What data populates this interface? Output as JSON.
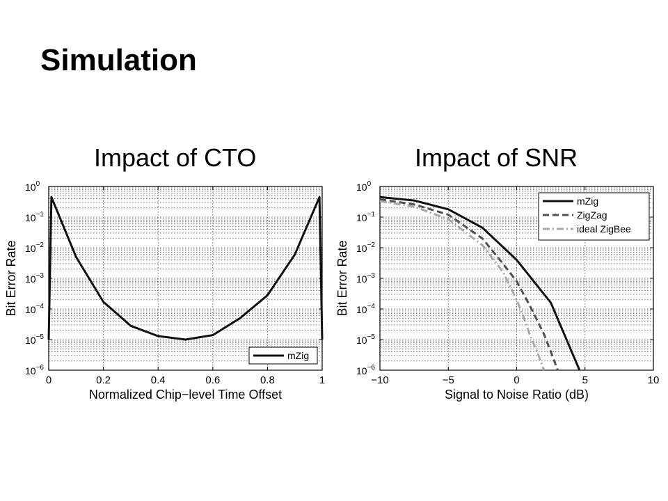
{
  "slide": {
    "title": "Simulation"
  },
  "chart_data": [
    {
      "type": "line",
      "title": "Impact of CTO",
      "xlabel": "Normalized Chip−level Time Offset",
      "ylabel": "Bit Error Rate",
      "xlim": [
        0,
        1
      ],
      "ylim": [
        1e-06,
        1
      ],
      "yscale": "log",
      "grid": true,
      "legend_position": "bottom-right",
      "xticks": [
        0,
        0.2,
        0.4,
        0.6,
        0.8,
        1
      ],
      "xtick_labels": [
        "0",
        "0.2",
        "0.4",
        "0.6",
        "0.8",
        "1"
      ],
      "yticks": [
        1e-06,
        1e-05,
        0.0001,
        0.001,
        0.01,
        0.1,
        1
      ],
      "ytick_labels": [
        {
          "base": "10",
          "exp": "−6"
        },
        {
          "base": "10",
          "exp": "−5"
        },
        {
          "base": "10",
          "exp": "−4"
        },
        {
          "base": "10",
          "exp": "−3"
        },
        {
          "base": "10",
          "exp": "−2"
        },
        {
          "base": "10",
          "exp": "−1"
        },
        {
          "base": "10",
          "exp": "0"
        }
      ],
      "series": [
        {
          "name": "mZig",
          "color": "#111111",
          "dash": "solid",
          "x": [
            0,
            0.01,
            0.1,
            0.2,
            0.3,
            0.4,
            0.5,
            0.6,
            0.7,
            0.8,
            0.9,
            0.99,
            1
          ],
          "y": [
            1e-05,
            0.45,
            0.005,
            0.00017,
            2.8e-05,
            1.3e-05,
            1e-05,
            1.4e-05,
            5e-05,
            0.00028,
            0.006,
            0.45,
            1e-05
          ]
        }
      ]
    },
    {
      "type": "line",
      "title": "Impact of SNR",
      "xlabel": "Signal to Noise Ratio (dB)",
      "ylabel": "Bit Error Rate",
      "xlim": [
        -10,
        10
      ],
      "ylim": [
        1e-06,
        1
      ],
      "yscale": "log",
      "grid": true,
      "legend_position": "top-right",
      "xticks": [
        -10,
        -5,
        0,
        5,
        10
      ],
      "xtick_labels": [
        "−10",
        "−5",
        "0",
        "5",
        "10"
      ],
      "yticks": [
        1e-06,
        1e-05,
        0.0001,
        0.001,
        0.01,
        0.1,
        1
      ],
      "ytick_labels": [
        {
          "base": "10",
          "exp": "−6"
        },
        {
          "base": "10",
          "exp": "−5"
        },
        {
          "base": "10",
          "exp": "−4"
        },
        {
          "base": "10",
          "exp": "−3"
        },
        {
          "base": "10",
          "exp": "−2"
        },
        {
          "base": "10",
          "exp": "−1"
        },
        {
          "base": "10",
          "exp": "0"
        }
      ],
      "series": [
        {
          "name": "mZig",
          "color": "#111111",
          "dash": "solid",
          "x": [
            -10,
            -7.5,
            -5,
            -2.5,
            0,
            2.5,
            4.6
          ],
          "y": [
            0.45,
            0.35,
            0.18,
            0.045,
            0.004,
            0.00016,
            1e-06
          ]
        },
        {
          "name": "ZigZag",
          "color": "#505050",
          "dash": "dashed",
          "x": [
            -10,
            -7.5,
            -5,
            -2.5,
            -1,
            0,
            1,
            2,
            2.5,
            3.0
          ],
          "y": [
            0.38,
            0.26,
            0.12,
            0.02,
            0.003,
            0.0008,
            0.00012,
            1.5e-05,
            4e-06,
            1e-06
          ]
        },
        {
          "name": "ideal ZigBee",
          "color": "#a8a8a8",
          "dash": "dashdot",
          "x": [
            -10,
            -7.5,
            -5,
            -2.5,
            -1,
            0,
            0.5,
            1,
            1.5,
            2.0
          ],
          "y": [
            0.33,
            0.22,
            0.085,
            0.012,
            0.0016,
            0.0002,
            5.5e-05,
            1.3e-05,
            4e-06,
            1e-06
          ]
        }
      ]
    }
  ]
}
